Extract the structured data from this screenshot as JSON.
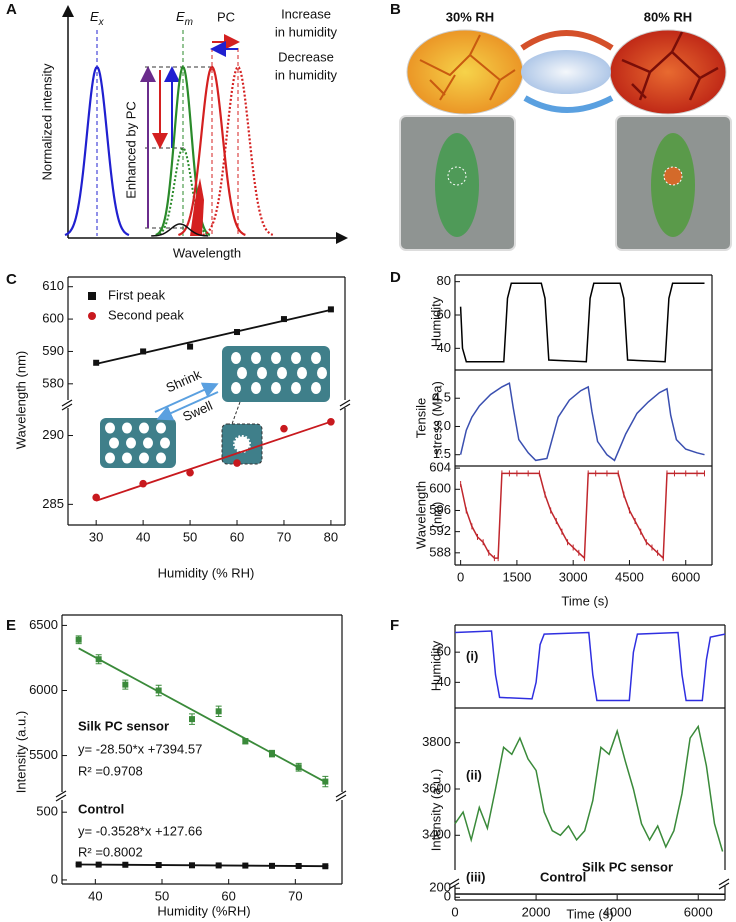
{
  "panel_labels": [
    "A",
    "B",
    "C",
    "D",
    "E",
    "F"
  ],
  "schematic": {
    "y_label": "Normalized intensity",
    "x_label": "Wavelength",
    "ex": {
      "main": "E",
      "sub": "x"
    },
    "em": {
      "main": "E",
      "sub": "m"
    },
    "pc": "PC",
    "increase": [
      "Increase",
      "in humidity"
    ],
    "decrease": [
      "Decrease",
      "in humidity"
    ],
    "enhanced": "Enhanced by PC"
  },
  "photos": {
    "left": "30% RH",
    "right": "80% RH"
  },
  "inset": {
    "shrink": "Shrink",
    "swell": "Swell"
  },
  "chart_data": [
    {
      "type": "scatter",
      "ylabel": "Wavelength (nm)",
      "x": [
        30,
        40,
        50,
        60,
        70,
        80
      ],
      "xlim": [
        24,
        83
      ],
      "ylim": [
        575,
        613
      ],
      "yticks": [
        580,
        590,
        600,
        610
      ],
      "fit_line": true,
      "series": [
        {
          "name": "First peak",
          "color": "#111111",
          "marker": "square",
          "values": [
            586.5,
            590,
            591.5,
            596,
            600,
            603
          ]
        }
      ]
    },
    {
      "type": "scatter",
      "xlabel": "Humidity (% RH)",
      "x": [
        30,
        40,
        50,
        60,
        70,
        80
      ],
      "xlim": [
        24,
        83
      ],
      "xticks": [
        30,
        40,
        50,
        60,
        70,
        80
      ],
      "ylim": [
        283.5,
        292
      ],
      "yticks": [
        285,
        290
      ],
      "fit_line": true,
      "series": [
        {
          "name": "Second peak",
          "color": "#c8191e",
          "marker": "circle",
          "values": [
            285.5,
            286.5,
            287.3,
            288,
            290.5,
            291
          ]
        }
      ]
    },
    {
      "type": "line",
      "ylabel": "Humidity",
      "x": [
        0,
        50,
        150,
        1150,
        1250,
        1350,
        2150,
        2250,
        2350,
        3350,
        3450,
        3550,
        4250,
        4350,
        4450,
        5450,
        5550,
        5650,
        6500
      ],
      "xlim": [
        -150,
        6700
      ],
      "ylim": [
        27,
        84
      ],
      "yticks": [
        40,
        60,
        80
      ],
      "series": [
        {
          "color": "#000000",
          "values": [
            65,
            40,
            32,
            32,
            70,
            79,
            79,
            70,
            33,
            32,
            70,
            79,
            79,
            70,
            33,
            32,
            70,
            79,
            79
          ]
        }
      ]
    },
    {
      "type": "line",
      "ylabel": [
        "Tensile",
        "stress (MPa)"
      ],
      "ylabel_color": "#2b2b8c",
      "x": [
        0,
        150,
        300,
        500,
        800,
        1100,
        1300,
        1400,
        1550,
        1800,
        2000,
        2300,
        2600,
        2900,
        3200,
        3400,
        3500,
        3650,
        3900,
        4100,
        4400,
        4700,
        5000,
        5300,
        5500,
        5600,
        5750,
        6000,
        6300,
        6500
      ],
      "xlim": [
        -150,
        6700
      ],
      "ylim": [
        0.9,
        6.0
      ],
      "yticks": [
        1.5,
        {
          "value": 3,
          "label": "3.0"
        },
        4.5
      ],
      "series": [
        {
          "color": "#3a4fb0",
          "values": [
            1.5,
            2.8,
            3.5,
            4.1,
            4.7,
            5.1,
            5.3,
            4.0,
            2.3,
            1.6,
            1.2,
            1.3,
            3.5,
            4.4,
            4.9,
            5.1,
            3.8,
            2.2,
            1.5,
            1.2,
            2.6,
            3.7,
            4.3,
            4.8,
            5.0,
            3.6,
            2.3,
            1.8,
            1.6,
            1.5
          ]
        }
      ]
    },
    {
      "type": "line",
      "ylabel": [
        "Wavelength",
        "(nm)"
      ],
      "ylabel_color": "#c0272d",
      "xlabel": "Time (s)",
      "x": [
        0,
        150,
        300,
        450,
        600,
        750,
        900,
        1000,
        1100,
        1300,
        1500,
        1800,
        2100,
        2250,
        2400,
        2550,
        2700,
        2850,
        3000,
        3150,
        3300,
        3400,
        3600,
        3900,
        4200,
        4350,
        4500,
        4650,
        4800,
        4950,
        5100,
        5250,
        5400,
        5500,
        5700,
        6000,
        6300,
        6500
      ],
      "xlim": [
        -150,
        6700
      ],
      "xticks": [
        0,
        1500,
        3000,
        4500,
        6000
      ],
      "ylim": [
        585.7,
        604.4
      ],
      "yticks": [
        588,
        592,
        596,
        600,
        604
      ],
      "series": [
        {
          "color": "#c0272d",
          "marker": "tick",
          "values": [
            601,
            596,
            593,
            591,
            590,
            588,
            587,
            587,
            603,
            603,
            603,
            603,
            603,
            599,
            596,
            594,
            592,
            590,
            589,
            588,
            587,
            603,
            603,
            603,
            603,
            599,
            596,
            594,
            592,
            590,
            589,
            588,
            587,
            603,
            603,
            603,
            603,
            603
          ]
        }
      ]
    },
    {
      "type": "scatter",
      "ylabel": "Intensity (a.u.)",
      "x": [
        37.5,
        40.5,
        44.5,
        49.5,
        54.5,
        58.5,
        62.5,
        66.5,
        70.5,
        74.5
      ],
      "xlim": [
        35,
        77
      ],
      "ylim": [
        5220,
        6580
      ],
      "yticks": [
        5500,
        6000,
        6500
      ],
      "fit_line": true,
      "annotations": [
        "Silk PC sensor",
        "y= -28.50*x +7394.57",
        "R² =0.9708"
      ],
      "series": [
        {
          "color": "#3a8a3a",
          "marker": "square",
          "values": [
            6390,
            6240,
            6045,
            6000,
            5780,
            5840,
            5610,
            5515,
            5410,
            5300
          ],
          "errors": [
            30,
            35,
            35,
            40,
            40,
            40,
            20,
            25,
            30,
            40
          ]
        }
      ]
    },
    {
      "type": "scatter",
      "xlabel": "Humidity (%RH)",
      "x": [
        37.5,
        40.5,
        44.5,
        49.5,
        54.5,
        58.5,
        62.5,
        66.5,
        70.5,
        74.5
      ],
      "xlim": [
        35,
        77
      ],
      "xticks": [
        40,
        50,
        60,
        70
      ],
      "ylim": [
        -30,
        590
      ],
      "yticks": [
        0,
        500
      ],
      "fit_line": true,
      "annotations": [
        "Control",
        "y= -0.3528*x +127.66",
        "R² =0.8002"
      ],
      "series": [
        {
          "color": "#111111",
          "marker": "square",
          "values": [
            114,
            113,
            112,
            110,
            108,
            107,
            106,
            104,
            103,
            101
          ],
          "errors": [
            6,
            6,
            6,
            6,
            6,
            6,
            6,
            6,
            6,
            6
          ]
        }
      ]
    },
    {
      "type": "line",
      "label": "(i)",
      "ylabel": "Humidity",
      "x": [
        0,
        900,
        1000,
        1100,
        1900,
        2000,
        2100,
        2200,
        3300,
        3400,
        3500,
        4300,
        4400,
        4500,
        5500,
        5600,
        5700,
        6100,
        6200,
        6300,
        6660
      ],
      "xlim": [
        0,
        6660
      ],
      "ylim": [
        23,
        78
      ],
      "yticks": [
        40,
        60
      ],
      "series": [
        {
          "color": "#2f2fe0",
          "values": [
            73,
            74,
            45,
            30,
            29,
            40,
            65,
            72,
            73,
            45,
            28,
            28,
            60,
            72,
            73,
            45,
            28,
            28,
            55,
            70,
            72
          ]
        }
      ]
    },
    {
      "type": "line",
      "label": "(ii)",
      "ylabel": "Intensity (a.u.)",
      "annotations": [
        "Silk PC sensor"
      ],
      "x": [
        0,
        200,
        400,
        600,
        800,
        1000,
        1200,
        1400,
        1600,
        1800,
        2000,
        2200,
        2400,
        2600,
        2800,
        3000,
        3200,
        3400,
        3600,
        3800,
        4000,
        4200,
        4400,
        4600,
        4800,
        5000,
        5200,
        5400,
        5600,
        5800,
        6000,
        6200,
        6400,
        6600
      ],
      "xlim": [
        0,
        6660
      ],
      "ylim": [
        3250,
        3950
      ],
      "yticks": [
        3400,
        3600,
        3800
      ],
      "series": [
        {
          "color": "#3a8a3a",
          "values": [
            3450,
            3500,
            3380,
            3520,
            3430,
            3600,
            3780,
            3750,
            3820,
            3730,
            3680,
            3500,
            3420,
            3400,
            3440,
            3380,
            3420,
            3550,
            3780,
            3750,
            3850,
            3720,
            3600,
            3450,
            3380,
            3440,
            3350,
            3420,
            3580,
            3820,
            3870,
            3700,
            3450,
            3330
          ]
        }
      ]
    },
    {
      "type": "line",
      "label": "(iii)",
      "annotations": [
        "Control"
      ],
      "xlabel": "Time (s)",
      "x": [
        0,
        1000,
        2000,
        3000,
        4000,
        5000,
        6000,
        6660
      ],
      "xlim": [
        0,
        6660
      ],
      "xticks": [
        0,
        2000,
        4000,
        6000
      ],
      "ylim": [
        -60,
        250
      ],
      "yticks": [
        0,
        200
      ],
      "series": [
        {
          "color": "#111111",
          "values": [
            72,
            70,
            71,
            69,
            70,
            71,
            70,
            69
          ]
        }
      ]
    }
  ]
}
